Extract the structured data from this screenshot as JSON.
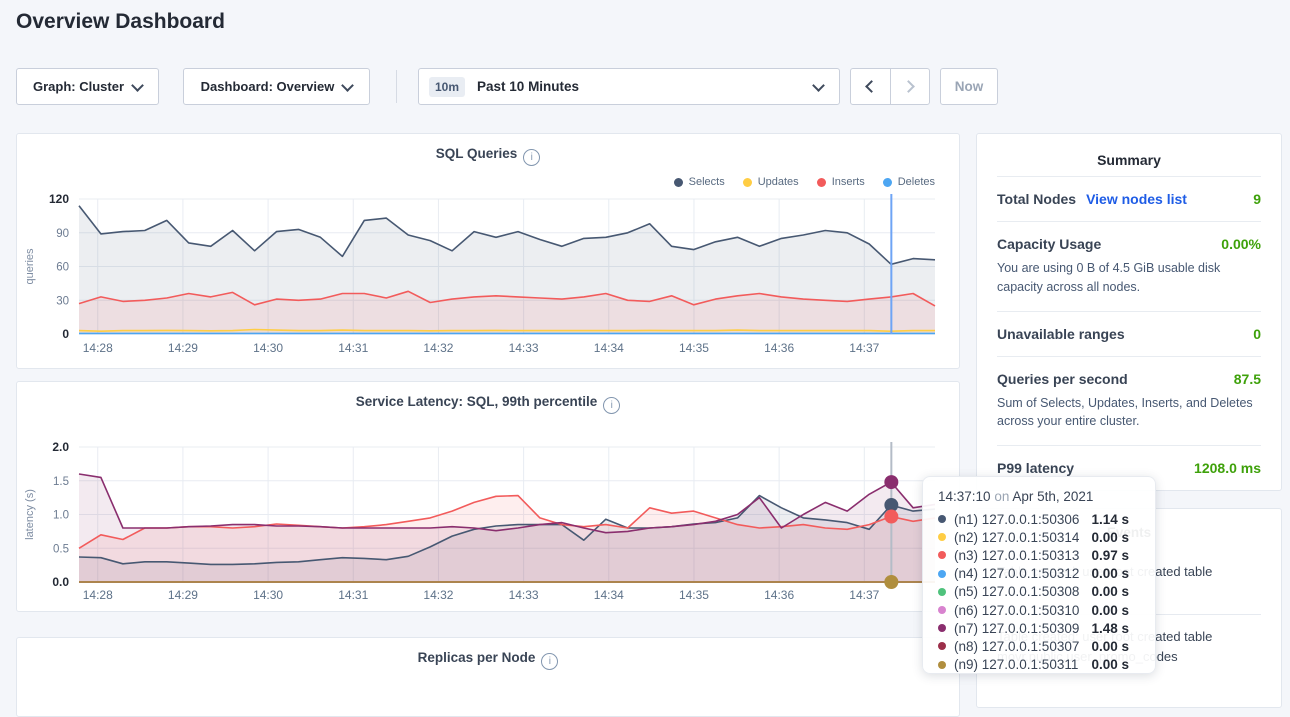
{
  "page": {
    "title": "Overview Dashboard"
  },
  "controls": {
    "graph_dropdown": "Graph: Cluster",
    "dashboard_dropdown": "Dashboard: Overview",
    "time_badge": "10m",
    "time_label": "Past 10 Minutes",
    "now_label": "Now"
  },
  "colors": {
    "accent_green": "#3ea10a",
    "link_blue": "#1e5ce6",
    "hover_line_blue": "#6ea4f5"
  },
  "chart_data": [
    {
      "type": "area",
      "title": "SQL Queries",
      "ylabel": "queries",
      "ylim": [
        0,
        120
      ],
      "yticks": [
        0,
        30,
        60,
        90,
        120
      ],
      "ytick_labels": [
        "0",
        "30",
        "60",
        "90",
        "120"
      ],
      "x_ticklabels": [
        "14:28",
        "14:29",
        "14:30",
        "14:31",
        "14:32",
        "14:33",
        "14:34",
        "14:35",
        "14:36",
        "14:37"
      ],
      "legend_position": "top-right",
      "grid": true,
      "series": [
        {
          "name": "Selects",
          "color": "#475872",
          "values": [
            114,
            89,
            91,
            92,
            101,
            81,
            78,
            92,
            74,
            91,
            93,
            86,
            69,
            101,
            103,
            88,
            83,
            74,
            91,
            86,
            91,
            84,
            78,
            85,
            86,
            90,
            98,
            78,
            75,
            82,
            86,
            78,
            85,
            88,
            92,
            90,
            80,
            62,
            67,
            66
          ]
        },
        {
          "name": "Updates",
          "color": "#ffcd44",
          "values": [
            3,
            2.5,
            3,
            3,
            3.2,
            3,
            2.8,
            3,
            4,
            3.5,
            3,
            3,
            3.5,
            3,
            3,
            3,
            2.8,
            3,
            3,
            3.2,
            3,
            3,
            3,
            3,
            3,
            3,
            3.2,
            3,
            3,
            3,
            3.5,
            3,
            3,
            3,
            3,
            3,
            3,
            2.5,
            3,
            3
          ]
        },
        {
          "name": "Inserts",
          "color": "#f25b5b",
          "values": [
            27,
            33,
            29,
            30,
            32,
            36,
            33,
            37,
            26,
            31,
            30,
            31,
            36,
            36,
            32,
            38,
            28,
            31,
            33,
            34,
            33,
            32,
            31,
            33,
            36,
            30,
            29,
            34,
            26,
            31,
            34,
            36,
            33,
            31,
            30,
            29,
            31,
            33,
            36,
            25
          ]
        },
        {
          "name": "Deletes",
          "color": "#4da6f2",
          "values": [
            0.5,
            0.5,
            0.5,
            0.5,
            0.5,
            0.5,
            0.5,
            0.5,
            0.5,
            0.5,
            0.5,
            0.5,
            0.5,
            0.5,
            0.5,
            0.5,
            0.5,
            0.5,
            0.5,
            0.5,
            0.5,
            0.5,
            0.5,
            0.5,
            0.5,
            0.5,
            0.5,
            0.5,
            0.5,
            0.5,
            0.5,
            0.5,
            0.5,
            0.5,
            0.5,
            0.5,
            0.5,
            0.5,
            0.5,
            0.5
          ]
        }
      ],
      "hover": {
        "frac": 0.949,
        "line_color": "#6ea4f5"
      }
    },
    {
      "type": "area",
      "title": "Service Latency: SQL, 99th percentile",
      "ylabel": "latency (s)",
      "ylim": [
        0,
        2
      ],
      "yticks": [
        0,
        0.5,
        1,
        1.5,
        2
      ],
      "ytick_labels": [
        "0.0",
        "0.5",
        "1.0",
        "1.5",
        "2.0"
      ],
      "x_ticklabels": [
        "14:28",
        "14:29",
        "14:30",
        "14:31",
        "14:32",
        "14:33",
        "14:34",
        "14:35",
        "14:36",
        "14:37"
      ],
      "grid": true,
      "series": [
        {
          "name": "(n1) 127.0.0.1:50306",
          "color": "#475872",
          "values": [
            0.37,
            0.36,
            0.27,
            0.3,
            0.3,
            0.28,
            0.26,
            0.26,
            0.27,
            0.29,
            0.3,
            0.33,
            0.36,
            0.35,
            0.33,
            0.38,
            0.52,
            0.68,
            0.78,
            0.83,
            0.85,
            0.85,
            0.85,
            0.62,
            0.93,
            0.8,
            0.8,
            0.82,
            0.86,
            0.88,
            0.95,
            1.28,
            1.1,
            0.95,
            0.92,
            0.88,
            0.78,
            1.14,
            1.05,
            1.08
          ]
        },
        {
          "name": "(n2) 127.0.0.1:50314",
          "color": "#ffcd44",
          "values": [
            0,
            0,
            0,
            0,
            0,
            0,
            0,
            0,
            0,
            0,
            0,
            0,
            0,
            0,
            0,
            0,
            0,
            0,
            0,
            0,
            0,
            0,
            0,
            0,
            0,
            0,
            0,
            0,
            0,
            0,
            0,
            0,
            0,
            0,
            0,
            0,
            0,
            0,
            0,
            0
          ]
        },
        {
          "name": "(n3) 127.0.0.1:50313",
          "color": "#f25b5b",
          "values": [
            0.5,
            0.7,
            0.63,
            0.8,
            0.8,
            0.82,
            0.82,
            0.8,
            0.82,
            0.86,
            0.84,
            0.82,
            0.8,
            0.82,
            0.85,
            0.9,
            0.95,
            1.05,
            1.18,
            1.27,
            1.28,
            0.95,
            0.85,
            0.82,
            0.85,
            0.8,
            1.1,
            1.02,
            1.05,
            0.95,
            0.85,
            0.8,
            0.82,
            0.85,
            0.8,
            0.78,
            0.85,
            0.97,
            0.9,
            0.95
          ]
        },
        {
          "name": "(n4) 127.0.0.1:50312",
          "color": "#4da6f2",
          "values": [
            0,
            0,
            0,
            0,
            0,
            0,
            0,
            0,
            0,
            0,
            0,
            0,
            0,
            0,
            0,
            0,
            0,
            0,
            0,
            0,
            0,
            0,
            0,
            0,
            0,
            0,
            0,
            0,
            0,
            0,
            0,
            0,
            0,
            0,
            0,
            0,
            0,
            0,
            0,
            0
          ]
        },
        {
          "name": "(n5) 127.0.0.1:50308",
          "color": "#4fc27c",
          "values": [
            0,
            0,
            0,
            0,
            0,
            0,
            0,
            0,
            0,
            0,
            0,
            0,
            0,
            0,
            0,
            0,
            0,
            0,
            0,
            0,
            0,
            0,
            0,
            0,
            0,
            0,
            0,
            0,
            0,
            0,
            0,
            0,
            0,
            0,
            0,
            0,
            0,
            0,
            0,
            0
          ]
        },
        {
          "name": "(n6) 127.0.0.1:50310",
          "color": "#d883cf",
          "values": [
            0,
            0,
            0,
            0,
            0,
            0,
            0,
            0,
            0,
            0,
            0,
            0,
            0,
            0,
            0,
            0,
            0,
            0,
            0,
            0,
            0,
            0,
            0,
            0,
            0,
            0,
            0,
            0,
            0,
            0,
            0,
            0,
            0,
            0,
            0,
            0,
            0,
            0,
            0,
            0
          ]
        },
        {
          "name": "(n7) 127.0.0.1:50309",
          "color": "#8a2e6e",
          "values": [
            1.6,
            1.55,
            0.8,
            0.8,
            0.8,
            0.82,
            0.83,
            0.85,
            0.85,
            0.83,
            0.83,
            0.82,
            0.8,
            0.8,
            0.8,
            0.8,
            0.8,
            0.82,
            0.8,
            0.76,
            0.8,
            0.85,
            0.88,
            0.8,
            0.73,
            0.75,
            0.8,
            0.82,
            0.85,
            0.9,
            1.0,
            1.25,
            0.8,
            1.0,
            1.18,
            1.05,
            1.3,
            1.48,
            1.1,
            1.15
          ]
        },
        {
          "name": "(n8) 127.0.0.1:50307",
          "color": "#9c2f4a",
          "values": [
            0,
            0,
            0,
            0,
            0,
            0,
            0,
            0,
            0,
            0,
            0,
            0,
            0,
            0,
            0,
            0,
            0,
            0,
            0,
            0,
            0,
            0,
            0,
            0,
            0,
            0,
            0,
            0,
            0,
            0,
            0,
            0,
            0,
            0,
            0,
            0,
            0,
            0,
            0,
            0
          ]
        },
        {
          "name": "(n9) 127.0.0.1:50311",
          "color": "#b08e3e",
          "values": [
            0,
            0,
            0,
            0,
            0,
            0,
            0,
            0,
            0,
            0,
            0,
            0,
            0,
            0,
            0,
            0,
            0,
            0,
            0,
            0,
            0,
            0,
            0,
            0,
            0,
            0,
            0,
            0,
            0,
            0,
            0,
            0,
            0,
            0,
            0,
            0,
            0,
            0,
            0,
            0
          ]
        }
      ],
      "hover": {
        "frac": 0.949,
        "line_color": "#b4bcc7",
        "dots": [
          {
            "value": 1.48,
            "color": "#8a2e6e"
          },
          {
            "value": 1.14,
            "color": "#475872"
          },
          {
            "value": 0.97,
            "color": "#f25b5b"
          },
          {
            "value": 0.0,
            "color": "#b08e3e"
          }
        ]
      }
    },
    {
      "type": "area",
      "title": "Replicas per Node"
    }
  ],
  "summary": {
    "title": "Summary",
    "rows": [
      {
        "label": "Total Nodes",
        "link": "View nodes list",
        "value": "9"
      },
      {
        "label": "Capacity Usage",
        "value": "0.00%",
        "desc": "You are using 0 B of 4.5 GiB usable disk capacity across all nodes."
      },
      {
        "label": "Unavailable ranges",
        "value": "0"
      },
      {
        "label": "Queries per second",
        "value": "87.5",
        "desc": "Sum of Selects, Updates, Inserts, and Deletes across your entire cluster."
      },
      {
        "label": "P99 latency",
        "value": "1208.0 ms"
      }
    ]
  },
  "events": {
    "title": "Events",
    "entries": [
      {
        "text": "Table created: user root created table",
        "detail": ""
      },
      {
        "text": "Table created: user root created table",
        "detail": "movr.public.user_promo_codes"
      }
    ]
  },
  "tooltip": {
    "time": "14:37:10",
    "on": "on",
    "date": "Apr 5th, 2021",
    "rows": [
      {
        "node": "(n1) 127.0.0.1:50306",
        "value": "1.14 s",
        "color": "#475872"
      },
      {
        "node": "(n2) 127.0.0.1:50314",
        "value": "0.00 s",
        "color": "#ffcd44"
      },
      {
        "node": "(n3) 127.0.0.1:50313",
        "value": "0.97 s",
        "color": "#f25b5b"
      },
      {
        "node": "(n4) 127.0.0.1:50312",
        "value": "0.00 s",
        "color": "#4da6f2"
      },
      {
        "node": "(n5) 127.0.0.1:50308",
        "value": "0.00 s",
        "color": "#4fc27c"
      },
      {
        "node": "(n6) 127.0.0.1:50310",
        "value": "0.00 s",
        "color": "#d883cf"
      },
      {
        "node": "(n7) 127.0.0.1:50309",
        "value": "1.48 s",
        "color": "#8a2e6e"
      },
      {
        "node": "(n8) 127.0.0.1:50307",
        "value": "0.00 s",
        "color": "#9c2f4a"
      },
      {
        "node": "(n9) 127.0.0.1:50311",
        "value": "0.00 s",
        "color": "#b08e3e"
      }
    ]
  }
}
